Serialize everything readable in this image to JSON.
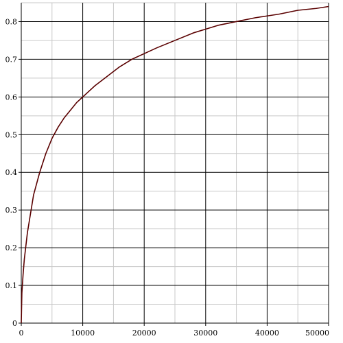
{
  "chart_data": {
    "type": "line",
    "title": "",
    "xlabel": "",
    "ylabel": "",
    "xlim": [
      0,
      50000
    ],
    "ylim": [
      0,
      0.85
    ],
    "x_major_ticks": [
      0,
      10000,
      20000,
      30000,
      40000,
      50000
    ],
    "x_tick_labels": [
      "0",
      "10000",
      "20000",
      "30000",
      "40000",
      "50000"
    ],
    "y_major_ticks": [
      0,
      0.1,
      0.2,
      0.3,
      0.4,
      0.5,
      0.6,
      0.7,
      0.8
    ],
    "y_tick_labels": [
      "0",
      "0.1",
      "0.2",
      "0.3",
      "0.4",
      "0.5",
      "0.6",
      "0.7",
      "0.8"
    ],
    "x_minor_step": 5000,
    "y_minor_step": 0.05,
    "grid": true,
    "series": [
      {
        "color": "#5a0000",
        "x": [
          0,
          100,
          300,
          500,
          1000,
          2000,
          3000,
          4000,
          5000,
          6000,
          7000,
          8000,
          9000,
          10000,
          12000,
          14000,
          16000,
          18000,
          20000,
          22000,
          25000,
          28000,
          30000,
          32000,
          35000,
          38000,
          40000,
          42000,
          45000,
          48000,
          50000
        ],
        "y": [
          0,
          0.08,
          0.13,
          0.17,
          0.24,
          0.34,
          0.4,
          0.45,
          0.49,
          0.52,
          0.545,
          0.565,
          0.585,
          0.6,
          0.63,
          0.655,
          0.68,
          0.7,
          0.715,
          0.73,
          0.75,
          0.77,
          0.78,
          0.79,
          0.8,
          0.81,
          0.815,
          0.82,
          0.83,
          0.835,
          0.84
        ]
      }
    ]
  }
}
